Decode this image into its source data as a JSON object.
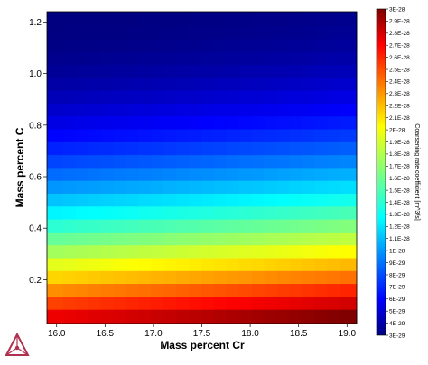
{
  "chart_data": {
    "type": "heatmap",
    "title": "",
    "xlabel": "Mass percent Cr",
    "ylabel": "Mass percent C",
    "colorbar_label": "Coarsening rate coefficient [m^3/s]",
    "xlim": [
      15.9,
      19.1
    ],
    "ylim": [
      0.03,
      1.24
    ],
    "x_ticks": [
      "16.0",
      "16.5",
      "17.0",
      "17.5",
      "18.0",
      "18.5",
      "19.0"
    ],
    "y_ticks": [
      "0.2",
      "0.4",
      "0.6",
      "0.8",
      "1.0",
      "1.2"
    ],
    "colorbar_range": [
      3e-29,
      3e-28
    ],
    "colorbar_ticks": [
      "3E-28",
      "2.9E-28",
      "2.8E-28",
      "2.7E-28",
      "2.6E-28",
      "2.5E-28",
      "2.4E-28",
      "2.3E-28",
      "2.2E-28",
      "2.1E-28",
      "2E-28",
      "1.9E-28",
      "1.8E-28",
      "1.7E-28",
      "1.6E-28",
      "1.5E-28",
      "1.4E-28",
      "1.3E-28",
      "1.2E-28",
      "1.1E-28",
      "1E-28",
      "9E-29",
      "8E-29",
      "7E-29",
      "6E-29",
      "5E-29",
      "4E-29",
      "3E-29"
    ],
    "colormap": "jet",
    "x": [
      16.0,
      16.13,
      16.26,
      16.39,
      16.52,
      16.65,
      16.78,
      16.91,
      17.04,
      17.17,
      17.3,
      17.43,
      17.56,
      17.69,
      17.82,
      17.95,
      18.08,
      18.21,
      18.34,
      18.47,
      18.6,
      18.73,
      18.86,
      19.0
    ],
    "y": [
      0.06,
      0.11,
      0.16,
      0.21,
      0.26,
      0.31,
      0.36,
      0.41,
      0.46,
      0.51,
      0.56,
      0.61,
      0.66,
      0.71,
      0.76,
      0.81,
      0.86,
      0.91,
      0.96,
      1.01,
      1.06,
      1.11,
      1.16,
      1.21
    ],
    "z_model": {
      "description": "z ≈ 3E-29 + 2.7E-28 * t^1.6, t = 0.93*(1 - (y-0.06)/1.15)^1.3 + 0.07*(x-16)/3",
      "min": 3e-29,
      "max": 3e-28
    }
  }
}
